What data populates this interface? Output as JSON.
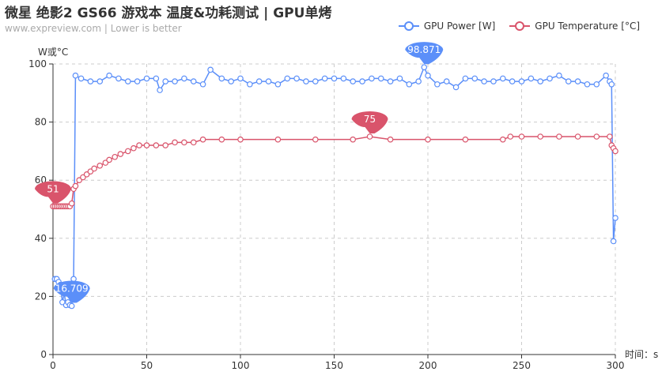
{
  "header": {
    "title": "微星 绝影2 GS66 游戏本 温度&功耗测试 | GPU单烤",
    "subtitle": "www.expreview.com | Lower is better"
  },
  "legend": [
    {
      "label": "GPU Power [W]",
      "color": "#5b8ff9"
    },
    {
      "label": "GPU Temperature [°C]",
      "color": "#d9546b"
    }
  ],
  "chart_data": {
    "type": "line",
    "title": "微星 绝影2 GS66 游戏本 温度&功耗测试 | GPU单烤",
    "subtitle": "www.expreview.com | Lower is better",
    "xlabel": "时间：s",
    "ylabel": "W或°C",
    "xlim": [
      0,
      300
    ],
    "ylim": [
      0,
      100
    ],
    "xticks": [
      0,
      50,
      100,
      150,
      200,
      250,
      300
    ],
    "yticks": [
      0,
      20,
      40,
      60,
      80,
      100
    ],
    "grid": true,
    "legend_position": "top-right",
    "series": [
      {
        "name": "GPU Power [W]",
        "color": "#5b8ff9",
        "x": [
          1,
          2,
          3,
          4,
          5,
          6,
          7,
          8,
          9,
          10,
          11,
          12,
          15,
          20,
          25,
          30,
          35,
          40,
          45,
          50,
          55,
          57,
          60,
          65,
          70,
          75,
          80,
          84,
          90,
          95,
          100,
          105,
          110,
          115,
          120,
          125,
          130,
          135,
          140,
          145,
          150,
          155,
          160,
          165,
          170,
          175,
          180,
          185,
          190,
          195,
          198,
          200,
          205,
          210,
          215,
          220,
          225,
          230,
          235,
          240,
          245,
          250,
          255,
          260,
          265,
          270,
          275,
          280,
          285,
          290,
          295,
          297,
          298,
          299,
          300
        ],
        "values": [
          26,
          26,
          25,
          24,
          18,
          21,
          17,
          18,
          17,
          16.709,
          26,
          96,
          95,
          94,
          94,
          96,
          95,
          94,
          94,
          95,
          95,
          91,
          94,
          94,
          95,
          94,
          93,
          98,
          95,
          94,
          95,
          93,
          94,
          94,
          93,
          95,
          95,
          94,
          94,
          95,
          95,
          95,
          94,
          94,
          95,
          95,
          94,
          95,
          93,
          94,
          98.871,
          96,
          93,
          94,
          92,
          95,
          95,
          94,
          94,
          95,
          94,
          94,
          95,
          94,
          95,
          96,
          94,
          94,
          93,
          93,
          96,
          94,
          93,
          39,
          47
        ],
        "max_label": "98.871",
        "min_label": "16.709"
      },
      {
        "name": "GPU Temperature [°C]",
        "color": "#d9546b",
        "x": [
          0,
          1,
          2,
          3,
          4,
          5,
          6,
          7,
          8,
          9,
          10,
          11,
          12,
          14,
          16,
          18,
          20,
          22,
          25,
          28,
          30,
          33,
          36,
          40,
          43,
          46,
          50,
          55,
          60,
          65,
          70,
          75,
          80,
          90,
          100,
          120,
          140,
          160,
          169,
          180,
          200,
          220,
          240,
          244,
          250,
          260,
          270,
          280,
          290,
          297,
          298,
          299,
          300
        ],
        "values": [
          51,
          51,
          51,
          51,
          51,
          51,
          51,
          51,
          51,
          51,
          52,
          57,
          58,
          60,
          61,
          62,
          63,
          64,
          65,
          66,
          67,
          68,
          69,
          70,
          71,
          72,
          72,
          72,
          72,
          73,
          73,
          73,
          74,
          74,
          74,
          74,
          74,
          74,
          75,
          74,
          74,
          74,
          74,
          75,
          75,
          75,
          75,
          75,
          75,
          75,
          72,
          71,
          70
        ],
        "max_label": "75",
        "min_label": "51"
      }
    ]
  }
}
